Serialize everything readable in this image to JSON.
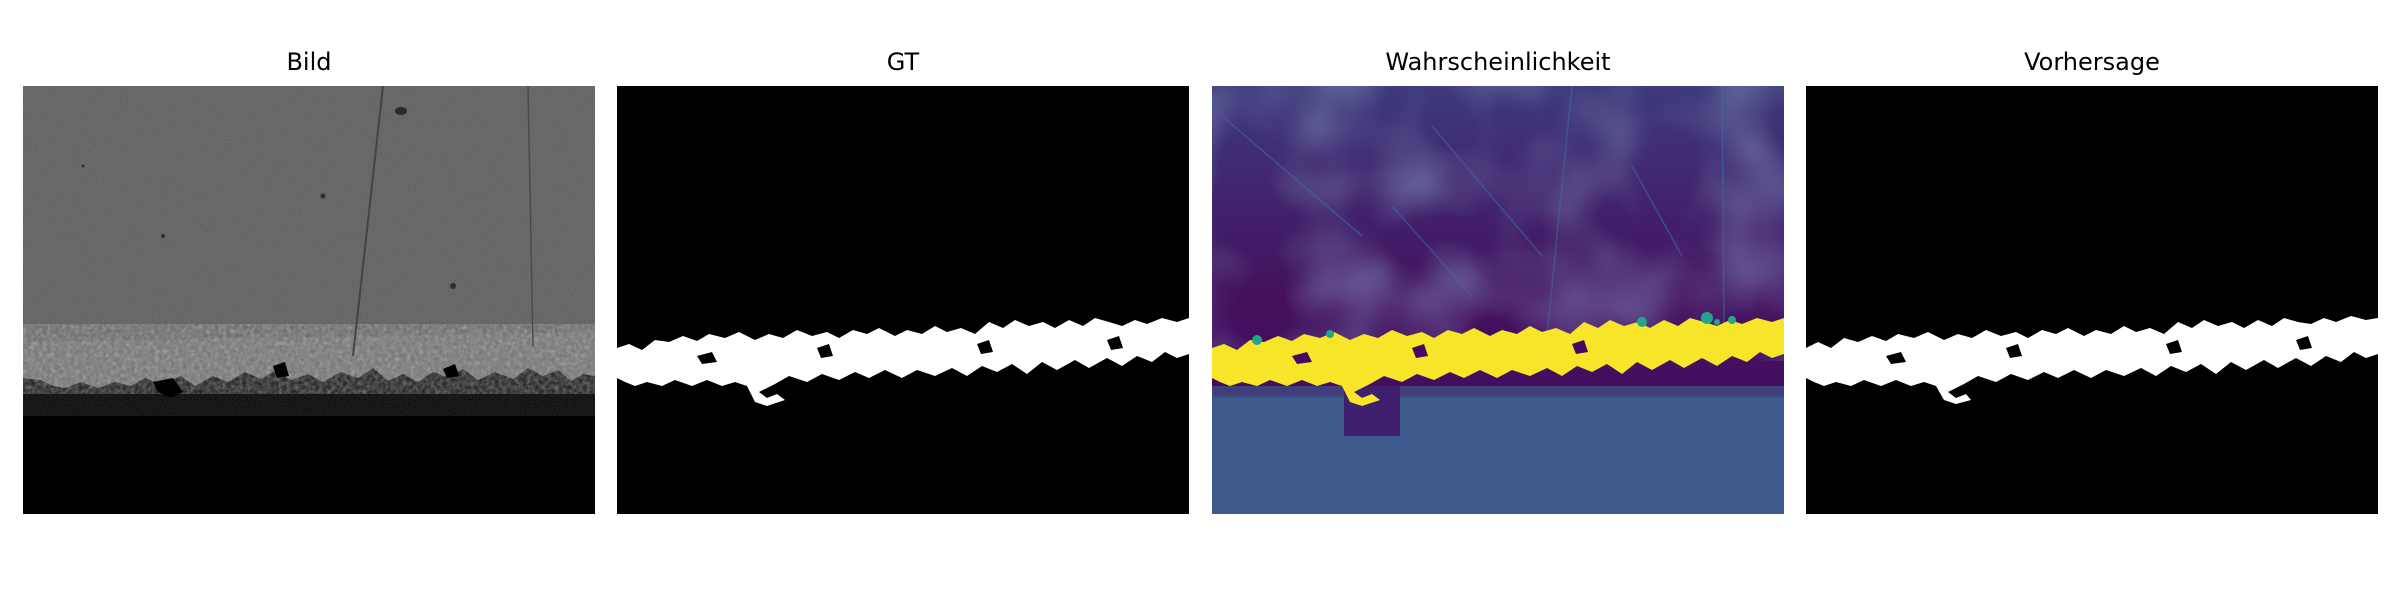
{
  "panels": [
    {
      "title": "Bild"
    },
    {
      "title": "GT"
    },
    {
      "title": "Wahrscheinlichkeit"
    },
    {
      "title": "Vorhersage"
    }
  ],
  "colors": {
    "bild_surface": "#5c5c5c",
    "background": "#000000",
    "mask": "#ffffff",
    "prob_low": "#440a62",
    "prob_high": "#f7e52a",
    "prob_mid": "#3c5a8c",
    "prob_teal": "#25a58a"
  }
}
